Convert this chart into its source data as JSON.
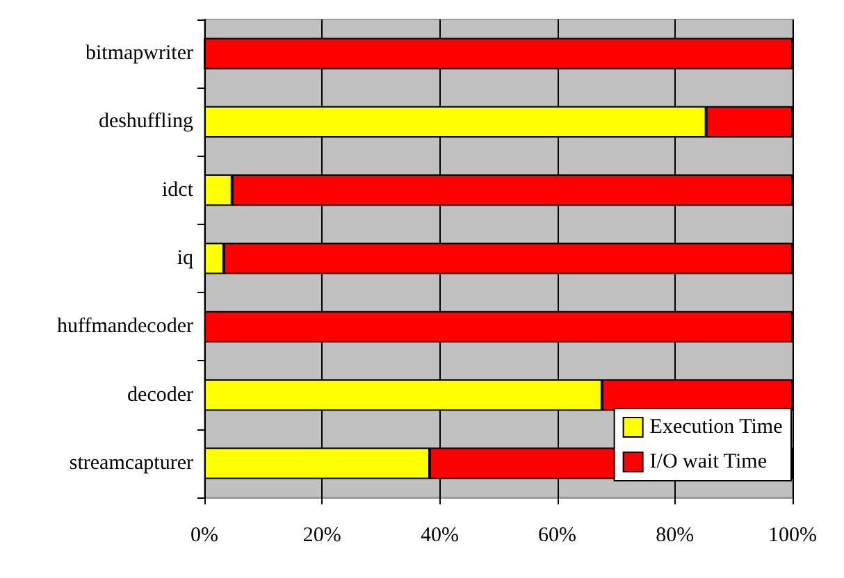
{
  "chart_data": {
    "type": "bar",
    "orientation": "horizontal",
    "stacked": true,
    "categories": [
      "bitmapwriter",
      "deshuffling",
      "idct",
      "iq",
      "huffmandecoder",
      "decoder",
      "streamcapturer"
    ],
    "series": [
      {
        "name": "Execution Time",
        "color": "#ffff00",
        "values": [
          0,
          85.3,
          4.7,
          3.3,
          null,
          67.6,
          38.3
        ]
      },
      {
        "name": "I/O wait Time",
        "color": "#ff0000",
        "values": [
          100,
          14.7,
          95.3,
          96.7,
          100,
          32.4,
          61.7
        ]
      }
    ],
    "xlim": [
      0,
      100
    ],
    "xticks": [
      {
        "value": 0,
        "label": "0%"
      },
      {
        "value": 20,
        "label": "20%"
      },
      {
        "value": 40,
        "label": "40%"
      },
      {
        "value": 60,
        "label": "60%"
      },
      {
        "value": 80,
        "label": "80%"
      },
      {
        "value": 100,
        "label": "100%"
      }
    ],
    "grid": "x",
    "legend": "bottom right"
  }
}
